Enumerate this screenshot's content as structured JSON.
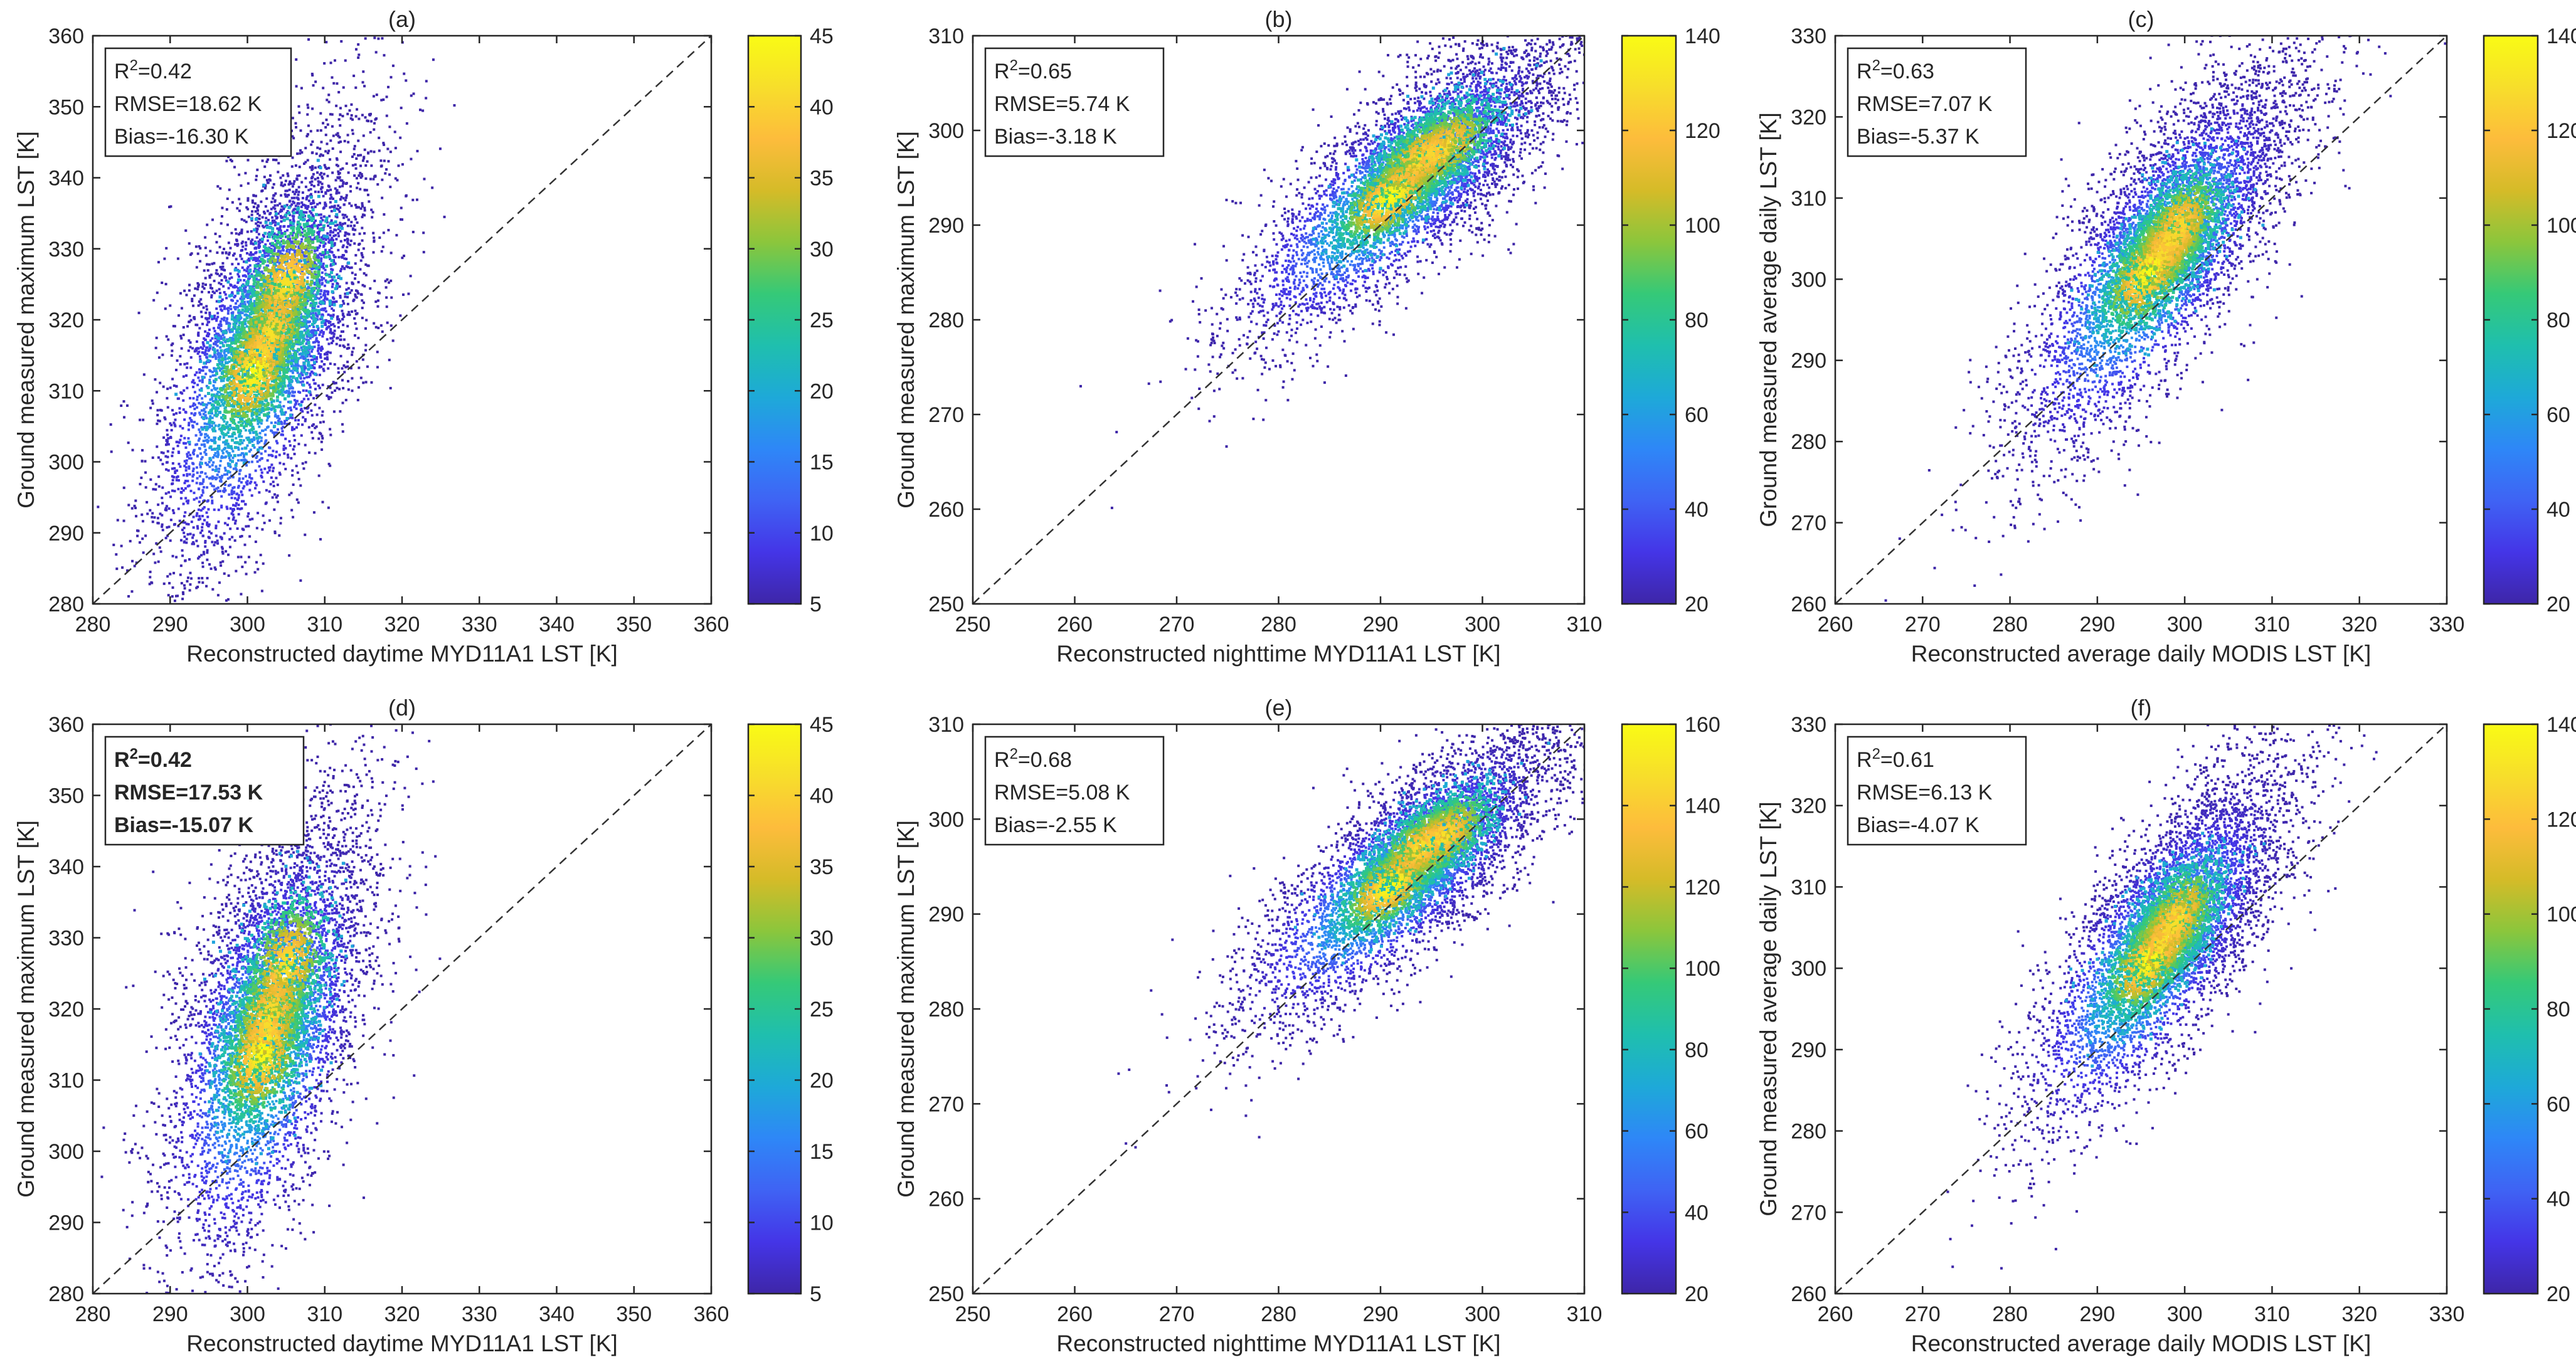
{
  "colormap": [
    "#3e26a8",
    "#4435e7",
    "#3f63f4",
    "#2e87f7",
    "#1ea9d8",
    "#1fbfae",
    "#35c978",
    "#8bc63c",
    "#d5bb28",
    "#fdbc3c",
    "#f7de2b",
    "#f9fb15"
  ],
  "chart_data": [
    {
      "type": "scatter",
      "panel_label": "(a)",
      "xlabel": "Reconstructed daytime MYD11A1 LST [K]",
      "ylabel": "Ground measured maximum LST [K]",
      "xlim": [
        280,
        360
      ],
      "ylim": [
        280,
        360
      ],
      "xticks": [
        "280",
        "290",
        "300",
        "310",
        "320",
        "330",
        "340",
        "350",
        "360"
      ],
      "yticks": [
        "280",
        "290",
        "300",
        "310",
        "320",
        "330",
        "340",
        "350",
        "360"
      ],
      "colorbar": {
        "range": [
          5,
          45
        ],
        "ticks": [
          "5",
          "10",
          "15",
          "20",
          "25",
          "30",
          "35",
          "40",
          "45"
        ]
      },
      "stats": {
        "r2_label": "R",
        "r2_exp": "2",
        "r2_value": "=0.42",
        "rmse": "RMSE=18.62 K",
        "bias": "Bias=-16.30 K",
        "bold": false
      },
      "grid": false,
      "reference_line": "1:1 dashed",
      "density_core": [
        [
          301,
          313
        ],
        [
          303,
          318
        ],
        [
          305,
          325
        ]
      ],
      "spread": [
        [
          280,
          297
        ],
        [
          296,
          291
        ],
        [
          330,
          308
        ],
        [
          342,
          345
        ],
        [
          310,
          350
        ],
        [
          283,
          340
        ]
      ]
    },
    {
      "type": "scatter",
      "panel_label": "(b)",
      "xlabel": "Reconstructed nighttime MYD11A1 LST [K]",
      "ylabel": "Ground measured maximum LST [K]",
      "xlim": [
        250,
        310
      ],
      "ylim": [
        250,
        310
      ],
      "xticks": [
        "250",
        "260",
        "270",
        "280",
        "290",
        "300",
        "310"
      ],
      "yticks": [
        "250",
        "260",
        "270",
        "280",
        "290",
        "300",
        "310"
      ],
      "colorbar": {
        "range": [
          20,
          140
        ],
        "ticks": [
          "20",
          "40",
          "60",
          "80",
          "100",
          "120",
          "140"
        ]
      },
      "stats": {
        "r2_label": "R",
        "r2_exp": "2",
        "r2_value": "=0.65",
        "rmse": "RMSE=5.74 K",
        "bias": "Bias=-3.18 K",
        "bold": false
      },
      "grid": false,
      "reference_line": "1:1 dashed",
      "density_core": [
        [
          291,
          293
        ],
        [
          294,
          297
        ],
        [
          296,
          298
        ]
      ],
      "spread": [
        [
          257,
          282
        ],
        [
          268,
          265
        ],
        [
          285,
          283
        ],
        [
          300,
          291
        ],
        [
          299,
          303
        ],
        [
          268,
          292
        ]
      ]
    },
    {
      "type": "scatter",
      "panel_label": "(c)",
      "xlabel": "Reconstructed average daily MODIS LST [K]",
      "ylabel": "Ground measured average daily LST [K]",
      "xlim": [
        260,
        330
      ],
      "ylim": [
        260,
        330
      ],
      "xticks": [
        "260",
        "270",
        "280",
        "290",
        "300",
        "310",
        "320",
        "330"
      ],
      "yticks": [
        "260",
        "270",
        "280",
        "290",
        "300",
        "310",
        "320",
        "330"
      ],
      "colorbar": {
        "range": [
          20,
          140
        ],
        "ticks": [
          "20",
          "40",
          "60",
          "80",
          "100",
          "120",
          "140"
        ]
      },
      "stats": {
        "r2_label": "R",
        "r2_exp": "2",
        "r2_value": "=0.63",
        "rmse": "RMSE=7.07 K",
        "bias": "Bias=-5.37 K",
        "bold": false
      },
      "grid": false,
      "reference_line": "1:1 dashed",
      "density_core": [
        [
          296,
          301
        ],
        [
          298,
          304
        ],
        [
          299,
          306
        ]
      ],
      "spread": [
        [
          266,
          288
        ],
        [
          282,
          275
        ],
        [
          310,
          298
        ],
        [
          320,
          310
        ],
        [
          316,
          320
        ],
        [
          275,
          300
        ]
      ]
    },
    {
      "type": "scatter",
      "panel_label": "(d)",
      "xlabel": "Reconstructed daytime MYD11A1 LST [K]",
      "ylabel": "Ground measured maximum LST [K]",
      "xlim": [
        280,
        360
      ],
      "ylim": [
        280,
        360
      ],
      "xticks": [
        "280",
        "290",
        "300",
        "310",
        "320",
        "330",
        "340",
        "350",
        "360"
      ],
      "yticks": [
        "280",
        "290",
        "300",
        "310",
        "320",
        "330",
        "340",
        "350",
        "360"
      ],
      "colorbar": {
        "range": [
          5,
          45
        ],
        "ticks": [
          "5",
          "10",
          "15",
          "20",
          "25",
          "30",
          "35",
          "40",
          "45"
        ]
      },
      "stats": {
        "r2_label": "R",
        "r2_exp": "2",
        "r2_value": "=0.42",
        "rmse": "RMSE=17.53 K",
        "bias": "Bias=-15.07 K",
        "bold": true
      },
      "grid": false,
      "reference_line": "1:1 dashed",
      "density_core": [
        [
          302,
          314
        ],
        [
          303,
          319
        ],
        [
          305,
          326
        ]
      ],
      "spread": [
        [
          281,
          300
        ],
        [
          294,
          285
        ],
        [
          330,
          308
        ],
        [
          342,
          345
        ],
        [
          310,
          350
        ],
        [
          283,
          340
        ]
      ]
    },
    {
      "type": "scatter",
      "panel_label": "(e)",
      "xlabel": "Reconstructed nighttime MYD11A1 LST [K]",
      "ylabel": "Ground measured maximum LST [K]",
      "xlim": [
        250,
        310
      ],
      "ylim": [
        250,
        310
      ],
      "xticks": [
        "250",
        "260",
        "270",
        "280",
        "290",
        "300",
        "310"
      ],
      "yticks": [
        "250",
        "260",
        "270",
        "280",
        "290",
        "300",
        "310"
      ],
      "colorbar": {
        "range": [
          20,
          160
        ],
        "ticks": [
          "20",
          "40",
          "60",
          "80",
          "100",
          "120",
          "140",
          "160"
        ]
      },
      "stats": {
        "r2_label": "R",
        "r2_exp": "2",
        "r2_value": "=0.68",
        "rmse": "RMSE=5.08 K",
        "bias": "Bias=-2.55 K",
        "bold": false
      },
      "grid": false,
      "reference_line": "1:1 dashed",
      "density_core": [
        [
          291,
          293
        ],
        [
          294,
          297
        ],
        [
          296,
          298
        ]
      ],
      "spread": [
        [
          259,
          283
        ],
        [
          268,
          266
        ],
        [
          285,
          282
        ],
        [
          300,
          291
        ],
        [
          299,
          304
        ],
        [
          268,
          293
        ]
      ]
    },
    {
      "type": "scatter",
      "panel_label": "(f)",
      "xlabel": "Reconstructed average daily MODIS LST [K]",
      "ylabel": "Ground measured average daily LST [K]",
      "xlim": [
        260,
        330
      ],
      "ylim": [
        260,
        330
      ],
      "xticks": [
        "260",
        "270",
        "280",
        "290",
        "300",
        "310",
        "320",
        "330"
      ],
      "yticks": [
        "260",
        "270",
        "280",
        "290",
        "300",
        "310",
        "320",
        "330"
      ],
      "colorbar": {
        "range": [
          20,
          140
        ],
        "ticks": [
          "20",
          "40",
          "60",
          "80",
          "100",
          "120",
          "140"
        ]
      },
      "stats": {
        "r2_label": "R",
        "r2_exp": "2",
        "r2_value": "=0.61",
        "rmse": "RMSE=6.13 K",
        "bias": "Bias=-4.07 K",
        "bold": false
      },
      "grid": false,
      "reference_line": "1:1 dashed",
      "density_core": [
        [
          296,
          301
        ],
        [
          298,
          304
        ],
        [
          299,
          306
        ]
      ],
      "spread": [
        [
          270,
          289
        ],
        [
          282,
          275
        ],
        [
          310,
          298
        ],
        [
          321,
          310
        ],
        [
          316,
          319
        ],
        [
          276,
          300
        ]
      ]
    }
  ]
}
